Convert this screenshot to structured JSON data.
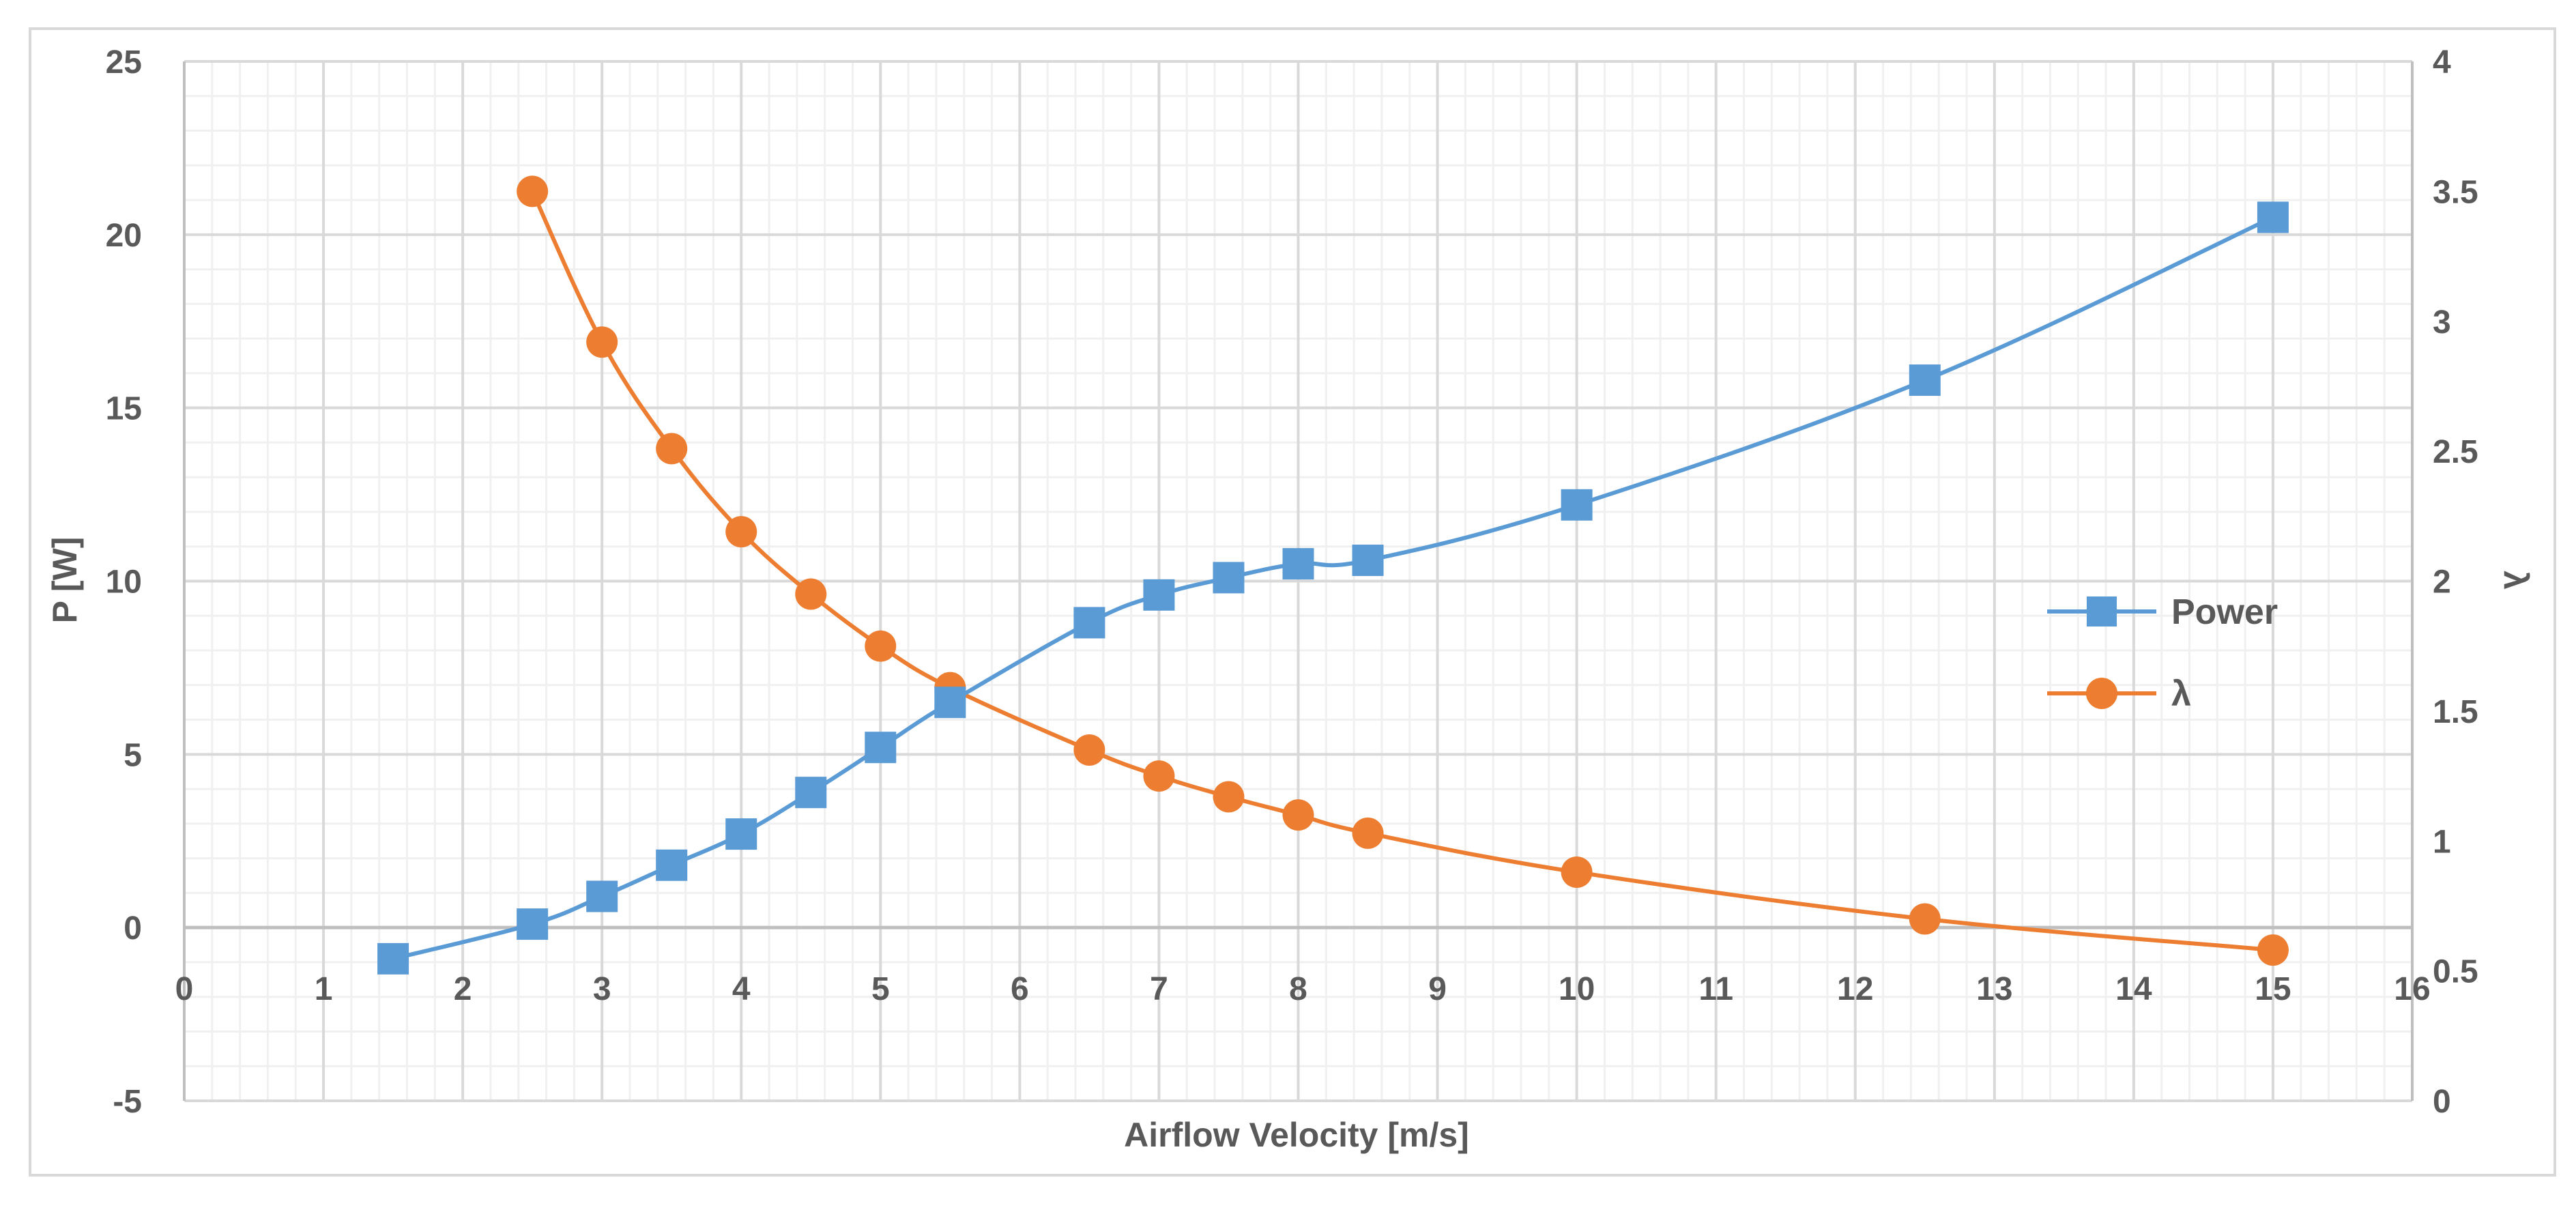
{
  "chart_data": {
    "type": "line",
    "title": "",
    "xlabel": "Airflow Velocity [m/s]",
    "ylabel_left": "P [W]",
    "ylabel_right": "λ",
    "xlim": [
      0,
      16
    ],
    "xticks": [
      "0",
      "1",
      "2",
      "3",
      "4",
      "5",
      "6",
      "7",
      "8",
      "9",
      "10",
      "11",
      "12",
      "13",
      "14",
      "15",
      "16"
    ],
    "ylim_left": [
      -5,
      25
    ],
    "yticks_left": [
      "-5",
      "0",
      "5",
      "10",
      "15",
      "20",
      "25"
    ],
    "ylim_right": [
      0,
      4
    ],
    "yticks_right": [
      "0",
      "0.5",
      "1",
      "1.5",
      "2",
      "2.5",
      "3",
      "3.5",
      "4"
    ],
    "grid": true,
    "legend_position": "right",
    "series": [
      {
        "name": "Power",
        "axis": "left",
        "color": "#5B9BD5",
        "marker": "square",
        "x": [
          1.5,
          2.5,
          3,
          3.5,
          4,
          4.5,
          5,
          5.5,
          6.5,
          7,
          7.5,
          8,
          8.5,
          10,
          12.5,
          15
        ],
        "y": [
          -0.9,
          0.1,
          0.9,
          1.8,
          2.7,
          3.9,
          5.2,
          6.5,
          8.8,
          9.6,
          10.1,
          10.5,
          10.6,
          12.2,
          15.8,
          20.5
        ]
      },
      {
        "name": "λ",
        "axis": "right",
        "color": "#ED7D31",
        "marker": "circle",
        "x": [
          2.5,
          3,
          3.5,
          4,
          4.5,
          5,
          5.5,
          6.5,
          7,
          7.5,
          8,
          8.5,
          10,
          12.5,
          15
        ],
        "y": [
          3.5,
          2.92,
          2.51,
          2.19,
          1.95,
          1.75,
          1.59,
          1.35,
          1.25,
          1.17,
          1.1,
          1.03,
          0.88,
          0.7,
          0.58
        ]
      }
    ]
  }
}
